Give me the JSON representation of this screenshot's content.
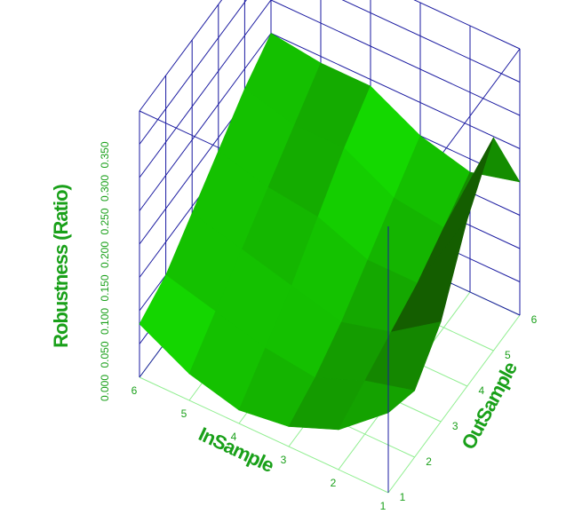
{
  "chart_data": {
    "type": "surface",
    "x_label": "InSample",
    "y_label": "OutSample",
    "z_label": "Robustness (Ratio)",
    "x": [
      1,
      2,
      3,
      4,
      5,
      6
    ],
    "y": [
      1,
      2,
      3,
      4,
      5,
      6
    ],
    "z": [
      [
        0.12,
        0.1,
        0.15,
        0.25,
        0.32,
        0.2
      ],
      [
        0.06,
        0.08,
        0.1,
        0.12,
        0.15,
        0.18
      ],
      [
        0.03,
        0.05,
        0.08,
        0.12,
        0.16,
        0.2
      ],
      [
        0.02,
        0.06,
        0.1,
        0.15,
        0.2,
        0.24
      ],
      [
        0.04,
        0.08,
        0.12,
        0.16,
        0.2,
        0.24
      ],
      [
        0.08,
        0.1,
        0.14,
        0.18,
        0.22,
        0.25
      ]
    ],
    "xlim": [
      1,
      6
    ],
    "ylim": [
      1,
      6
    ],
    "zlim": [
      0,
      0.4
    ],
    "xticks": [
      1,
      2,
      3,
      4,
      5,
      6
    ],
    "yticks": [
      1,
      2,
      3,
      4,
      5,
      6
    ],
    "zticks": [
      {
        "value": 0,
        "label": "0.000"
      },
      {
        "value": 0.05,
        "label": "0.050"
      },
      {
        "value": 0.1,
        "label": "0.100"
      },
      {
        "value": 0.15,
        "label": "0.150"
      },
      {
        "value": 0.2,
        "label": "0.200"
      },
      {
        "value": 0.25,
        "label": "0.250"
      },
      {
        "value": 0.3,
        "label": "0.300"
      },
      {
        "value": 0.35,
        "label": "0.350"
      }
    ],
    "surface_color": "#00d000",
    "box_color": "#1a1aa0",
    "floor_grid_color": "#90ee90"
  }
}
